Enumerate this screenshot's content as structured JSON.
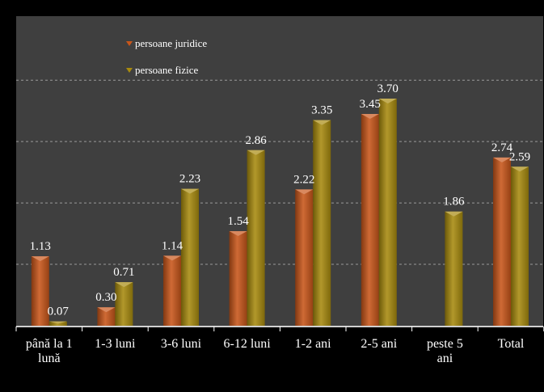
{
  "chart_data": {
    "type": "bar",
    "title": "",
    "xlabel": "",
    "ylabel": "",
    "categories": [
      "până la 1 lună",
      "1-3 luni",
      "3-6 luni",
      "6-12 luni",
      "1-2 ani",
      "2-5 ani",
      "peste 5 ani",
      "Total"
    ],
    "category_lines": [
      [
        "până la 1",
        "lună"
      ],
      [
        "1-3 luni"
      ],
      [
        "3-6 luni"
      ],
      [
        "6-12 luni"
      ],
      [
        "1-2 ani"
      ],
      [
        "2-5 ani"
      ],
      [
        "peste 5",
        "ani"
      ],
      [
        "Total"
      ]
    ],
    "series": [
      {
        "name": "persoane juridice",
        "color": "#c8561a",
        "values": [
          1.13,
          0.3,
          1.14,
          1.54,
          2.22,
          3.45,
          null,
          2.74
        ],
        "labels": [
          "1.13",
          "0.30",
          "1.14",
          "1.54",
          "2.22",
          "3.45",
          "",
          "2.74"
        ]
      },
      {
        "name": "persoane fizice",
        "color": "#a88a0e",
        "values": [
          0.07,
          0.71,
          2.23,
          2.86,
          3.35,
          3.7,
          1.86,
          2.59
        ],
        "labels": [
          "0.07",
          "0.71",
          "2.23",
          "2.86",
          "3.35",
          "3.70",
          "1.86",
          "2.59"
        ]
      }
    ],
    "ylim": [
      0,
      4.5
    ],
    "gridlines": [
      1,
      2,
      3,
      4
    ],
    "grid": true,
    "legend_position": "top-left",
    "background_color": "#3f3f3f"
  }
}
